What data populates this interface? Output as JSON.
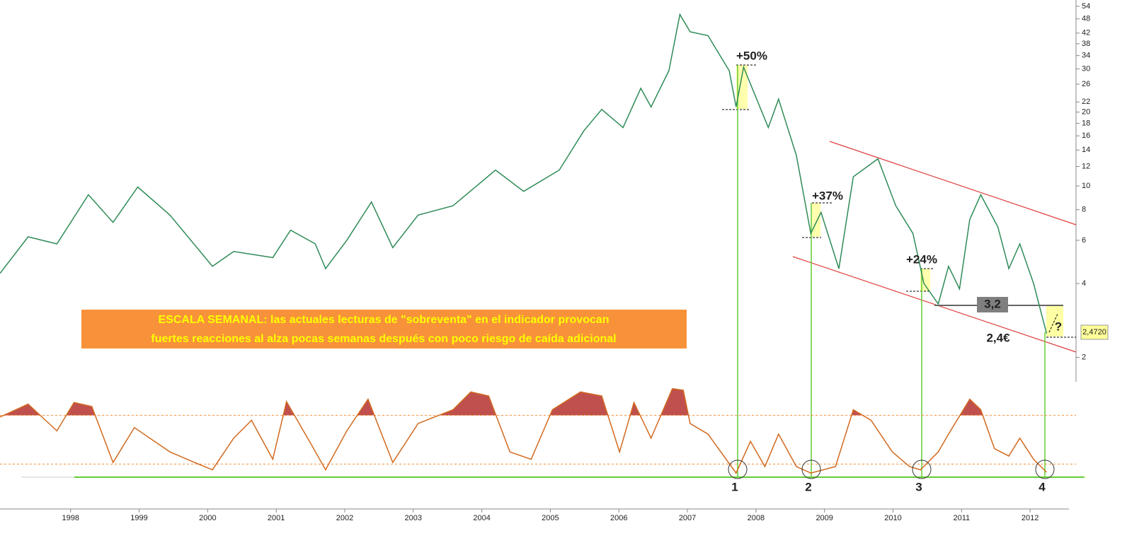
{
  "chart_data": [
    {
      "type": "line",
      "log_scale": true,
      "color": "#2e8b57",
      "x": [
        1996.97,
        1997.38,
        1997.8,
        1998.26,
        1998.62,
        1998.98,
        1999.45,
        2000.07,
        2000.38,
        2000.95,
        2001.21,
        2001.57,
        2001.72,
        2002.03,
        2002.39,
        2002.7,
        2003.07,
        2003.58,
        2004.2,
        2004.61,
        2005.13,
        2005.49,
        2005.75,
        2006.06,
        2006.32,
        2006.47,
        2006.73,
        2006.89,
        2007.04,
        2007.3,
        2007.61,
        2007.71,
        2007.82,
        2008.18,
        2008.33,
        2008.59,
        2008.8,
        2008.95,
        2009.21,
        2009.42,
        2009.78,
        2010.04,
        2010.29,
        2010.45,
        2010.66,
        2010.81,
        2010.97,
        2011.12,
        2011.28,
        2011.53,
        2011.69,
        2011.85,
        2012.05,
        2012.24
      ],
      "values": [
        4.4,
        6.2,
        5.8,
        9.2,
        7.1,
        9.9,
        7.6,
        4.7,
        5.4,
        5.1,
        6.6,
        5.8,
        4.6,
        6.0,
        8.6,
        5.6,
        7.6,
        8.3,
        11.6,
        9.5,
        11.6,
        16.8,
        20.5,
        17.3,
        25,
        21,
        29.5,
        50,
        42.5,
        41,
        29.5,
        21,
        30.5,
        17.3,
        22.6,
        13.3,
        6.4,
        7.8,
        4.6,
        10.9,
        12.9,
        8.3,
        6.4,
        4.0,
        3.3,
        4.7,
        3.8,
        7.3,
        9.2,
        6.8,
        4.6,
        5.8,
        4.0,
        2.5
      ],
      "xlim": [
        1996.97,
        2012.67
      ],
      "xticks": [
        1998,
        1999,
        2000,
        2001,
        2002,
        2003,
        2004,
        2005,
        2006,
        2007,
        2008,
        2009,
        2010,
        2011,
        2012
      ],
      "ylim": [
        1.59,
        57.3
      ],
      "yticks": [
        2,
        4,
        6,
        8,
        10,
        12,
        14,
        16,
        18,
        20,
        22,
        26,
        30,
        34,
        38,
        42,
        48,
        54
      ],
      "annotations": [
        "+50%",
        "+37%",
        "+24%",
        "3,2",
        "2,4€",
        "?",
        "2,4720"
      ],
      "text_box": [
        "ESCALA SEMANAL: las actuales lecturas de \"sobreventa\" en el indicador provocan",
        "fuertes reacciones al alza pocas semanas después con poco riesgo de caída adicional"
      ]
    },
    {
      "type": "line",
      "color": "#d2691e",
      "fill_color": "#c0504d",
      "x": [
        1996.97,
        1997.38,
        1997.8,
        1998.05,
        1998.31,
        1998.62,
        1998.93,
        1999.45,
        1999.81,
        2000.07,
        2000.38,
        2000.64,
        2000.95,
        2001.15,
        2001.52,
        2001.72,
        2002.03,
        2002.34,
        2002.7,
        2003.07,
        2003.58,
        2003.84,
        2004.1,
        2004.41,
        2004.72,
        2005.03,
        2005.44,
        2005.75,
        2006.01,
        2006.22,
        2006.47,
        2006.78,
        2006.94,
        2007.04,
        2007.3,
        2007.71,
        2007.92,
        2008.13,
        2008.33,
        2008.59,
        2008.8,
        2009.16,
        2009.42,
        2009.68,
        2009.99,
        2010.24,
        2010.4,
        2010.66,
        2010.81,
        2011.12,
        2011.28,
        2011.48,
        2011.69,
        2011.85,
        2012.05,
        2012.24
      ],
      "values": [
        78,
        94,
        61,
        96,
        91,
        22,
        65,
        35,
        22,
        13,
        52,
        74,
        26,
        97,
        43,
        13,
        61,
        100,
        22,
        70,
        87,
        109,
        104,
        35,
        26,
        87,
        109,
        104,
        35,
        96,
        52,
        113,
        111,
        70,
        57,
        9,
        48,
        17,
        57,
        17,
        9,
        17,
        87,
        74,
        35,
        17,
        13,
        35,
        57,
        100,
        87,
        39,
        30,
        52,
        26,
        10
      ],
      "xlim": [
        1996.97,
        2012.67
      ],
      "ylim": [
        -10,
        125
      ],
      "thresholds": [
        80,
        20
      ],
      "callouts": [
        "1",
        "2",
        "3",
        "4"
      ]
    }
  ]
}
